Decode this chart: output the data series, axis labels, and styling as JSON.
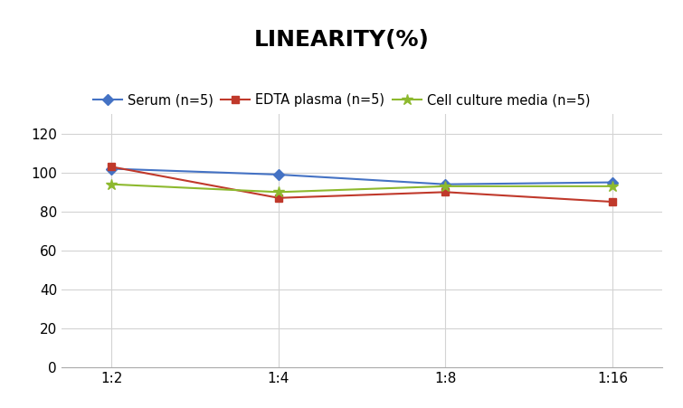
{
  "title": "LINEARITY(%)",
  "x_labels": [
    "1:2",
    "1:4",
    "1:8",
    "1:16"
  ],
  "series": [
    {
      "label": "Serum (n=5)",
      "values": [
        102,
        99,
        94,
        95
      ],
      "color": "#4472C4",
      "marker": "D",
      "marker_size": 6
    },
    {
      "label": "EDTA plasma (n=5)",
      "values": [
        103,
        87,
        90,
        85
      ],
      "color": "#C0392B",
      "marker": "s",
      "marker_size": 6
    },
    {
      "label": "Cell culture media (n=5)",
      "values": [
        94,
        90,
        93,
        93
      ],
      "color": "#8DB92E",
      "marker": "*",
      "marker_size": 9
    }
  ],
  "ylim": [
    0,
    130
  ],
  "yticks": [
    0,
    20,
    40,
    60,
    80,
    100,
    120
  ],
  "grid_color": "#D3D3D3",
  "background_color": "#FFFFFF",
  "title_fontsize": 18,
  "legend_fontsize": 10.5,
  "tick_fontsize": 11
}
